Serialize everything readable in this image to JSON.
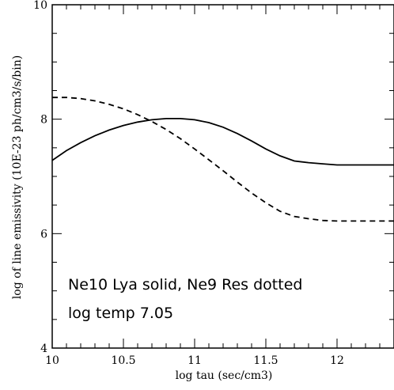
{
  "chart_data": {
    "type": "line",
    "title": "",
    "xlabel": "log tau (sec/cm3)",
    "ylabel": "log of line emissivity (10E-23 ph/cm3/s/bin)",
    "xlim": [
      10,
      12.4
    ],
    "ylim": [
      4,
      10
    ],
    "xticks": [
      10,
      10.5,
      11,
      11.5,
      12
    ],
    "xtick_labels": [
      "10",
      "10.5",
      "11",
      "11.5",
      "12"
    ],
    "yticks": [
      4,
      6,
      8,
      10
    ],
    "ytick_labels": [
      "4",
      "6",
      "8",
      "10"
    ],
    "x_minor_step": 0.1,
    "y_minor_step": 0.5,
    "grid": false,
    "annotations": [
      "Ne10 Lya solid, Ne9 Res dotted",
      "log temp 7.05"
    ],
    "series": [
      {
        "style": "solid",
        "x": [
          10.0,
          10.1,
          10.2,
          10.3,
          10.4,
          10.5,
          10.6,
          10.7,
          10.8,
          10.9,
          11.0,
          11.1,
          11.2,
          11.3,
          11.4,
          11.5,
          11.6,
          11.7,
          11.8,
          11.9,
          12.0,
          12.1,
          12.2,
          12.3,
          12.4
        ],
        "y": [
          7.28,
          7.45,
          7.59,
          7.71,
          7.81,
          7.89,
          7.95,
          7.99,
          8.01,
          8.01,
          7.99,
          7.94,
          7.86,
          7.75,
          7.62,
          7.48,
          7.36,
          7.27,
          7.24,
          7.22,
          7.2,
          7.2,
          7.2,
          7.2,
          7.2
        ]
      },
      {
        "style": "dashed",
        "x": [
          10.0,
          10.1,
          10.2,
          10.3,
          10.4,
          10.5,
          10.6,
          10.7,
          10.8,
          10.9,
          11.0,
          11.1,
          11.2,
          11.3,
          11.4,
          11.5,
          11.6,
          11.7,
          11.8,
          11.9,
          12.0,
          12.1,
          12.2,
          12.3,
          12.4
        ],
        "y": [
          8.38,
          8.38,
          8.36,
          8.32,
          8.26,
          8.18,
          8.08,
          7.96,
          7.82,
          7.66,
          7.48,
          7.29,
          7.1,
          6.9,
          6.71,
          6.54,
          6.39,
          6.3,
          6.26,
          6.23,
          6.22,
          6.22,
          6.22,
          6.22,
          6.22
        ]
      }
    ]
  }
}
